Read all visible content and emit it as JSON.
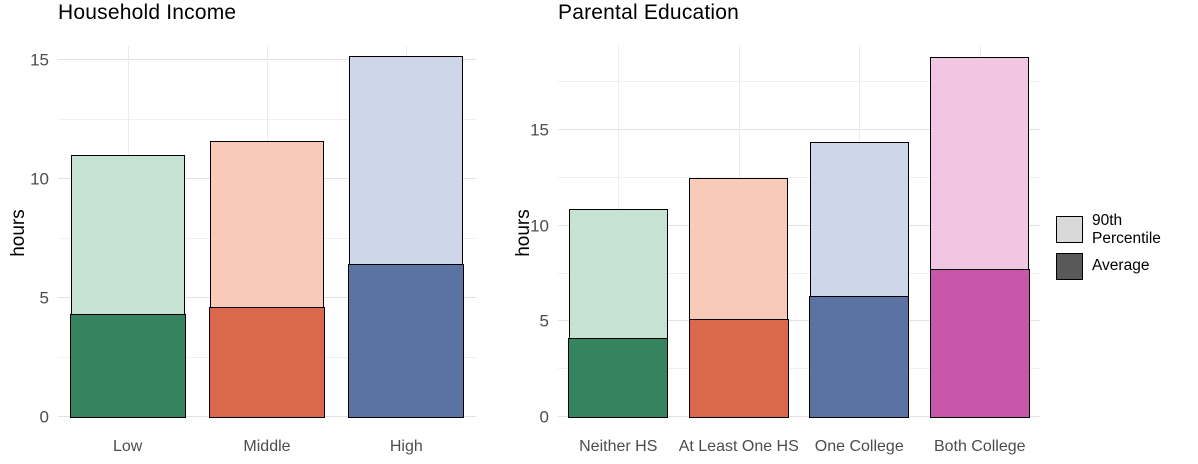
{
  "figure": {
    "legend": {
      "items": [
        {
          "label": "90th Percentile",
          "swatch_color": "#d9d9d9"
        },
        {
          "label": "Average",
          "swatch_color": "#595959"
        }
      ]
    }
  },
  "chart_data": [
    {
      "type": "bar",
      "title": "Household Income",
      "ylabel": "hours",
      "xlabel": "",
      "categories": [
        "Low",
        "Middle",
        "High"
      ],
      "series": [
        {
          "name": "90th Percentile",
          "values": [
            11.0,
            11.6,
            15.2
          ]
        },
        {
          "name": "Average",
          "values": [
            4.4,
            4.7,
            6.5
          ]
        }
      ],
      "yticks": [
        0,
        5,
        10,
        15
      ],
      "ylim": [
        0,
        15.6
      ],
      "grid": true,
      "legend_position": "right",
      "bar_colors_light": [
        "#c5e2d2",
        "#f9cab7",
        "#cdd7e9"
      ],
      "bar_colors_dark": [
        "#36845f",
        "#d9694a",
        "#5a73a3"
      ]
    },
    {
      "type": "bar",
      "title": "Parental Education",
      "ylabel": "hours",
      "xlabel": "",
      "categories": [
        "Neither HS",
        "At Least One HS",
        "One College",
        "Both College"
      ],
      "series": [
        {
          "name": "90th Percentile",
          "values": [
            10.9,
            12.5,
            14.4,
            18.8
          ]
        },
        {
          "name": "Average",
          "values": [
            4.2,
            5.2,
            6.4,
            7.8
          ]
        }
      ],
      "yticks": [
        0,
        5,
        10,
        15
      ],
      "ylim": [
        0,
        19.4
      ],
      "grid": true,
      "legend_position": "right",
      "bar_colors_light": [
        "#c5e2d2",
        "#f9cab7",
        "#cdd7e9",
        "#f0c6e3"
      ],
      "bar_colors_dark": [
        "#36845f",
        "#d9694a",
        "#5a73a3",
        "#c857aa"
      ]
    }
  ]
}
